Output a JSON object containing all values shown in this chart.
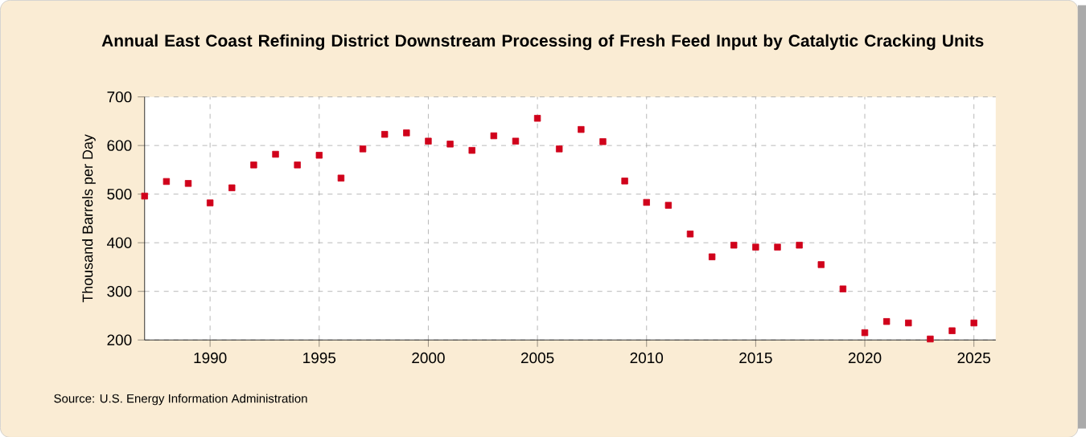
{
  "chart_data": {
    "type": "scatter",
    "title": "Annual East Coast Refining District Downstream Processing of Fresh Feed Input by Catalytic Cracking Units",
    "ylabel": "Thousand Barrels per Day",
    "x": [
      1987,
      1988,
      1989,
      1990,
      1991,
      1992,
      1993,
      1994,
      1995,
      1996,
      1997,
      1998,
      1999,
      2000,
      2001,
      2002,
      2003,
      2004,
      2005,
      2006,
      2007,
      2008,
      2009,
      2010,
      2011,
      2012,
      2013,
      2014,
      2015,
      2016,
      2017,
      2018,
      2019,
      2020,
      2021,
      2022,
      2023,
      2024,
      2025
    ],
    "series": [
      {
        "color": "#d0021b",
        "values": [
          496,
          526,
          522,
          482,
          513,
          560,
          582,
          560,
          580,
          533,
          593,
          623,
          626,
          609,
          603,
          590,
          620,
          609,
          656,
          593,
          633,
          608,
          527,
          483,
          477,
          418,
          371,
          395,
          391,
          391,
          395,
          355,
          305,
          215,
          238,
          235,
          202,
          219,
          235
        ]
      }
    ],
    "xlim": [
      1987,
      2026
    ],
    "ylim": [
      200,
      700
    ],
    "xticks": [
      1990,
      1995,
      2000,
      2005,
      2010,
      2015,
      2020,
      2025
    ],
    "yticks": [
      200,
      300,
      400,
      500,
      600,
      700
    ],
    "grid": true,
    "marker": "square",
    "annotations": [
      "Source: U.S. Energy Information Administration"
    ]
  }
}
